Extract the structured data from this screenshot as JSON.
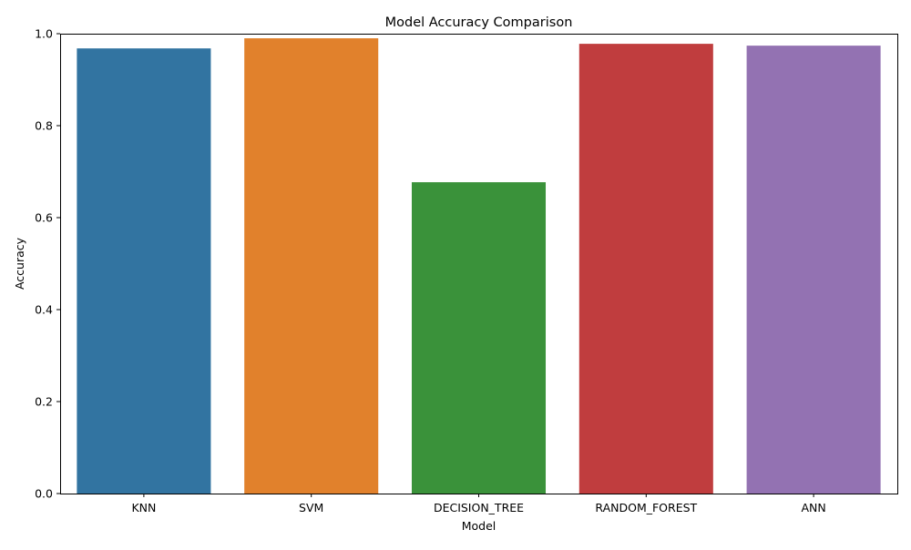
{
  "chart_data": {
    "type": "bar",
    "title": "Model Accuracy Comparison",
    "xlabel": "Model",
    "ylabel": "Accuracy",
    "categories": [
      "KNN",
      "SVM",
      "DECISION_TREE",
      "RANDOM_FOREST",
      "ANN"
    ],
    "values": [
      0.968,
      0.99,
      0.677,
      0.978,
      0.974
    ],
    "colors": [
      "#3274a1",
      "#e1812c",
      "#3a923a",
      "#c03d3e",
      "#9372b2"
    ],
    "ylim": [
      0,
      1.0
    ],
    "yticks": [
      0.0,
      0.2,
      0.4,
      0.6,
      0.8,
      1.0
    ],
    "ytick_labels": [
      "0.0",
      "0.2",
      "0.4",
      "0.6",
      "0.8",
      "1.0"
    ],
    "grid": false,
    "legend": "none"
  }
}
